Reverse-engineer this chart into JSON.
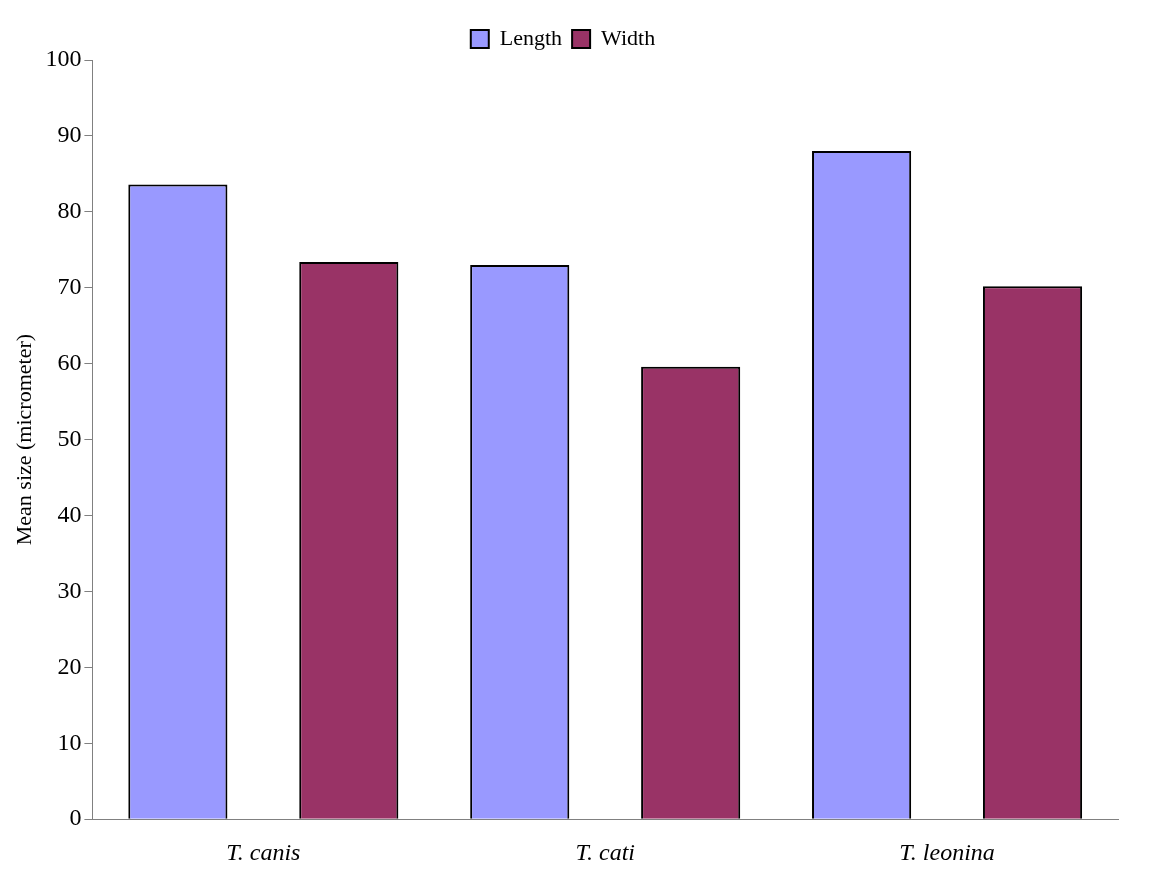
{
  "chart_data": {
    "type": "bar",
    "ylabel": "Mean size (micrometer)",
    "categories": [
      "T. canis",
      "T. cati",
      "T. leonina"
    ],
    "series": [
      {
        "name": "Length",
        "color": "#9999ff",
        "values": [
          83.6,
          73.0,
          88.0
        ]
      },
      {
        "name": "Width",
        "color": "#993366",
        "values": [
          73.4,
          59.6,
          70.2
        ]
      }
    ],
    "ylim": [
      0,
      100
    ],
    "yticks": [
      0,
      10,
      20,
      30,
      40,
      50,
      60,
      70,
      80,
      90,
      100
    ],
    "grid": false,
    "legend": "top"
  }
}
